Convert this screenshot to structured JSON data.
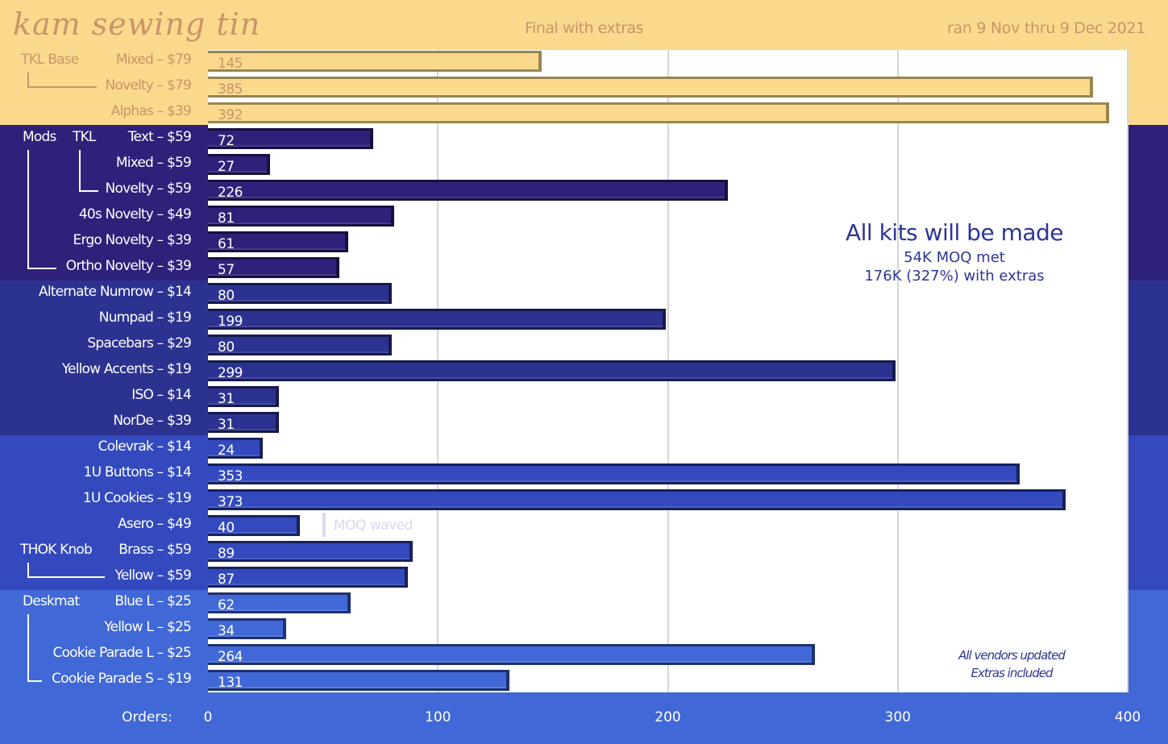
{
  "header": {
    "title": "kam sewing tin",
    "subtitle": "Final with extras",
    "date_range": "ran 9 Nov thru 9 Dec 2021"
  },
  "annotations": {
    "headline": "All kits will be made",
    "moq_line": "54K MOQ met",
    "extras_line": "176K (327%) with extras",
    "vendors_note_1": "All vendors updated",
    "vendors_note_2": "Extras included",
    "moq_waved": "MOQ waved"
  },
  "groups": [
    {
      "label": "TKL Base",
      "band_color": "#fad98c",
      "bar_color": "#fad98c",
      "bar_border": "#9a8550",
      "text_color": "#c9946a"
    },
    {
      "label": "Mods",
      "band_color": "#2d217a",
      "bar_color": "#2d217a",
      "bar_border": "#16113f",
      "text_color": "#ffffff"
    },
    {
      "label": "",
      "band_color": "#2c3290",
      "bar_color": "#2c3290",
      "bar_border": "#151a4e",
      "text_color": "#ffffff"
    },
    {
      "label": "",
      "band_color": "#3349bd",
      "bar_color": "#3349bd",
      "bar_border": "#17215c",
      "text_color": "#ffffff"
    },
    {
      "label": "Deskmat",
      "band_color": "#4068d6",
      "bar_color": "#4068d6",
      "bar_border": "#1e3170",
      "text_color": "#ffffff"
    }
  ],
  "sublabels": {
    "tkl": "TKL",
    "thok_knob": "THOK Knob"
  },
  "chart_data": {
    "type": "bar",
    "orientation": "horizontal",
    "title": "kam sewing tin",
    "subtitle": "Final with extras",
    "xlabel": "Orders:",
    "ylabel": "",
    "xlim": [
      0,
      400
    ],
    "xticks": [
      0,
      100,
      200,
      300,
      400
    ],
    "grid": true,
    "categories": [
      "Mixed – $79",
      "Novelty – $79",
      "Alphas – $39",
      "Text – $59",
      "Mixed – $59",
      "Novelty – $59",
      "40s Novelty – $49",
      "Ergo Novelty – $39",
      "Ortho Novelty – $39",
      "Alternate Numrow – $14",
      "Numpad – $19",
      "Spacebars – $29",
      "Yellow Accents – $19",
      "ISO – $14",
      "NorDe – $39",
      "Colevrak – $14",
      "1U Buttons – $14",
      "1U Cookies – $19",
      "Asero – $49",
      "Brass – $59",
      "Yellow – $59",
      "Blue L – $25",
      "Yellow L – $25",
      "Cookie Parade L – $25",
      "Cookie Parade S – $19"
    ],
    "values": [
      145,
      385,
      392,
      72,
      27,
      226,
      81,
      61,
      57,
      80,
      199,
      80,
      299,
      31,
      31,
      24,
      353,
      373,
      40,
      89,
      87,
      62,
      34,
      264,
      131
    ],
    "group_index": [
      0,
      0,
      0,
      1,
      1,
      1,
      1,
      1,
      1,
      2,
      2,
      2,
      2,
      2,
      2,
      3,
      3,
      3,
      3,
      3,
      3,
      4,
      4,
      4,
      4
    ]
  }
}
